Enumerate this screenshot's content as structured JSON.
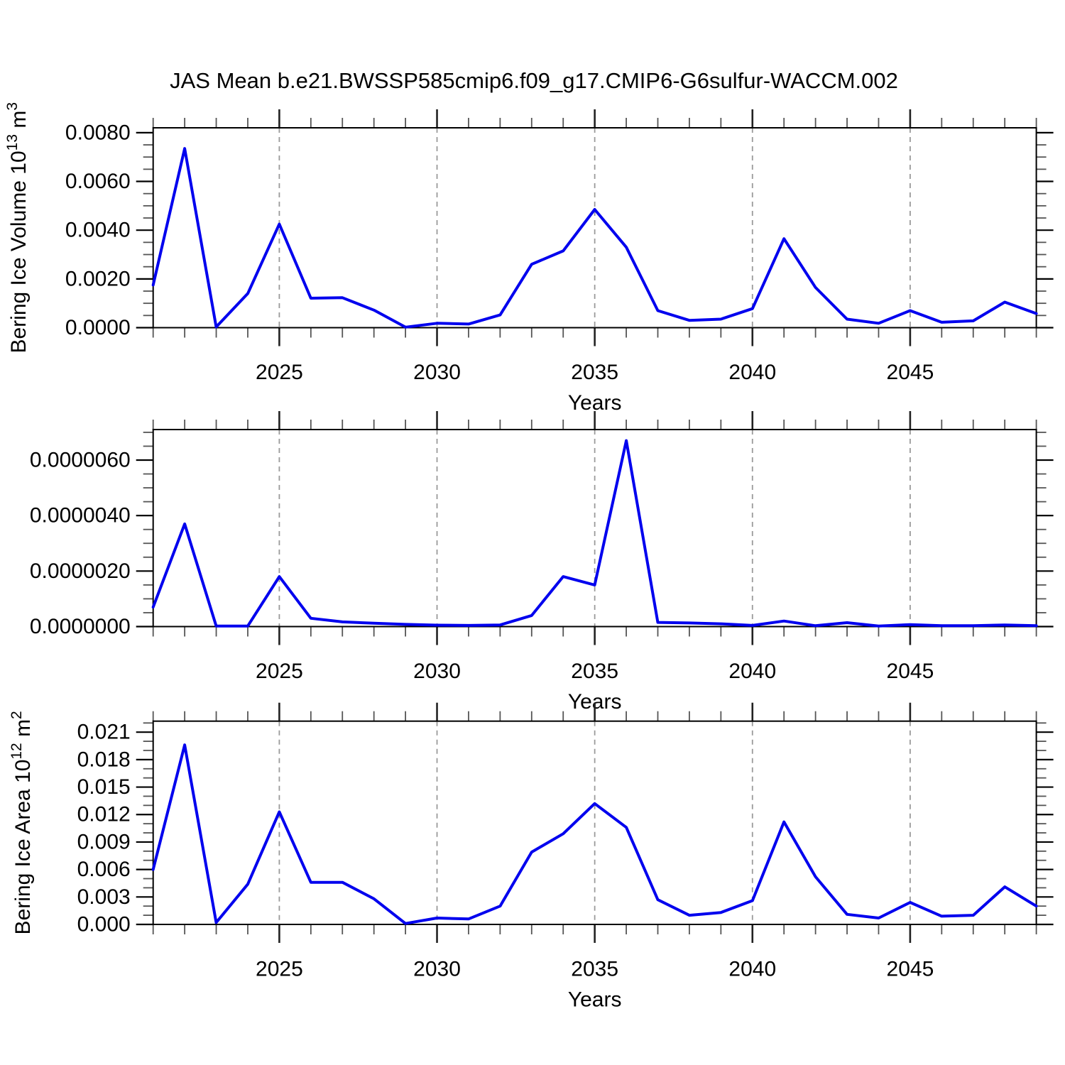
{
  "title": "JAS Mean b.e21.BWSSP585cmip6.f09_g17.CMIP6-G6sulfur-WACCM.002",
  "chart_data": [
    {
      "type": "line",
      "name": "bering-ice-volume",
      "ylabel_parts": [
        {
          "t": "Bering Ice Volume 10"
        },
        {
          "t": "13",
          "sup": true
        },
        {
          "t": " m"
        },
        {
          "t": "3",
          "sup": true
        }
      ],
      "xlabel": "Years",
      "x_start": 2021,
      "x_end": 2049,
      "x_major_ticks": [
        2025,
        2030,
        2035,
        2040,
        2045
      ],
      "ylim": [
        0,
        0.0082
      ],
      "y_major_step": 0.002,
      "y_minor_step": 0.0005,
      "y_tick_decimals": 4,
      "line_color": "#0000ee",
      "values": [
        0.00175,
        0.00735,
        3e-05,
        0.0014,
        0.00425,
        0.00121,
        0.00123,
        0.00072,
        2e-05,
        0.00018,
        0.00015,
        0.00052,
        0.0026,
        0.00315,
        0.00485,
        0.0033,
        0.0007,
        0.0003,
        0.00035,
        0.00078,
        0.00365,
        0.00165,
        0.00035,
        0.00018,
        0.0007,
        0.00022,
        0.00028,
        0.00105,
        0.00058
      ]
    },
    {
      "type": "line",
      "name": "bering-ice-middle",
      "ylabel_parts": [],
      "xlabel": "Years",
      "x_start": 2021,
      "x_end": 2049,
      "x_major_ticks": [
        2025,
        2030,
        2035,
        2040,
        2045
      ],
      "ylim": [
        0,
        7.1e-06
      ],
      "y_major_step": 2e-06,
      "y_minor_step": 5e-07,
      "y_tick_decimals": 7,
      "line_color": "#0000ee",
      "values": [
        7e-07,
        3.7e-06,
        2e-08,
        2e-08,
        1.8e-06,
        3e-07,
        1.7e-07,
        1.2e-07,
        8e-08,
        5e-08,
        4e-08,
        6e-08,
        4e-07,
        1.8e-06,
        1.5e-06,
        6.7e-06,
        1.5e-07,
        1.3e-07,
        1e-07,
        4e-08,
        2e-07,
        3e-08,
        1.4e-07,
        2e-08,
        7e-08,
        3e-08,
        3e-08,
        6e-08,
        3e-08
      ]
    },
    {
      "type": "line",
      "name": "bering-ice-area",
      "ylabel_parts": [
        {
          "t": "Bering Ice Area 10"
        },
        {
          "t": "12",
          "sup": true
        },
        {
          "t": " m"
        },
        {
          "t": "2",
          "sup": true
        }
      ],
      "xlabel": "Years",
      "x_start": 2021,
      "x_end": 2049,
      "x_major_ticks": [
        2025,
        2030,
        2035,
        2040,
        2045
      ],
      "ylim": [
        0,
        0.0222
      ],
      "y_major_step": 0.003,
      "y_minor_step": 0.001,
      "y_tick_decimals": 3,
      "line_color": "#0000ee",
      "values": [
        0.006,
        0.0196,
        0.0002,
        0.0044,
        0.0123,
        0.0046,
        0.0046,
        0.0028,
        0.0001,
        0.0007,
        0.0006,
        0.002,
        0.0079,
        0.0099,
        0.0132,
        0.0106,
        0.0027,
        0.001,
        0.0013,
        0.0026,
        0.0112,
        0.0052,
        0.0011,
        0.0007,
        0.0024,
        0.0009,
        0.001,
        0.0041,
        0.002
      ]
    }
  ],
  "colors": {
    "line": "#0000ee",
    "frame": "#000000",
    "gridline": "#9a9a9a",
    "minor_tick": "#555555"
  }
}
